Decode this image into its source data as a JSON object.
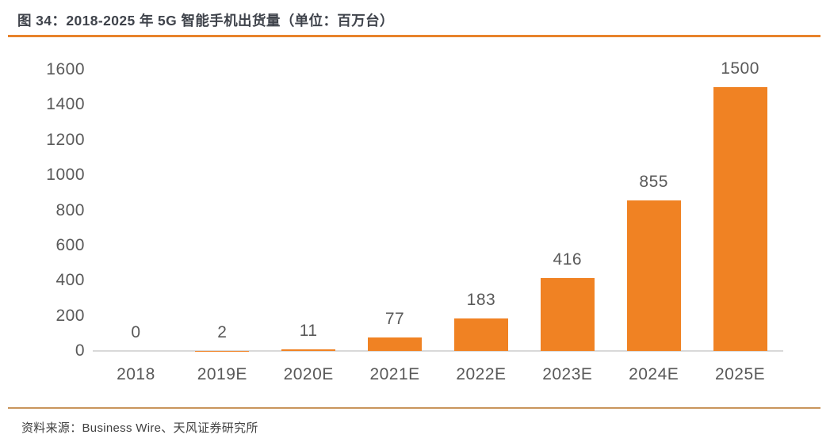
{
  "title": "图 34：2018-2025 年 5G 智能手机出货量（单位：百万台）",
  "footer": {
    "source_text": "资料来源：Business Wire、天风证券研究所"
  },
  "colors": {
    "bar": "#F08223",
    "title_rule": "#E8832C",
    "footer_rule": "#C9955C",
    "axis_line": "#D9D9D9",
    "tick_text": "#595959",
    "title_text": "#3F434B",
    "footer_text": "#404040"
  },
  "chart_data": {
    "type": "bar",
    "title": "2018-2025 年 5G 智能手机出货量（单位：百万台）",
    "categories": [
      "2018",
      "2019E",
      "2020E",
      "2021E",
      "2022E",
      "2023E",
      "2024E",
      "2025E"
    ],
    "values": [
      0,
      2,
      11,
      77,
      183,
      416,
      855,
      1500
    ],
    "xlabel": "",
    "ylabel": "",
    "ylim": [
      0,
      1600
    ],
    "yticks": [
      0,
      200,
      400,
      600,
      800,
      1000,
      1200,
      1400,
      1600
    ],
    "grid": false,
    "legend": false,
    "data_labels": true
  }
}
